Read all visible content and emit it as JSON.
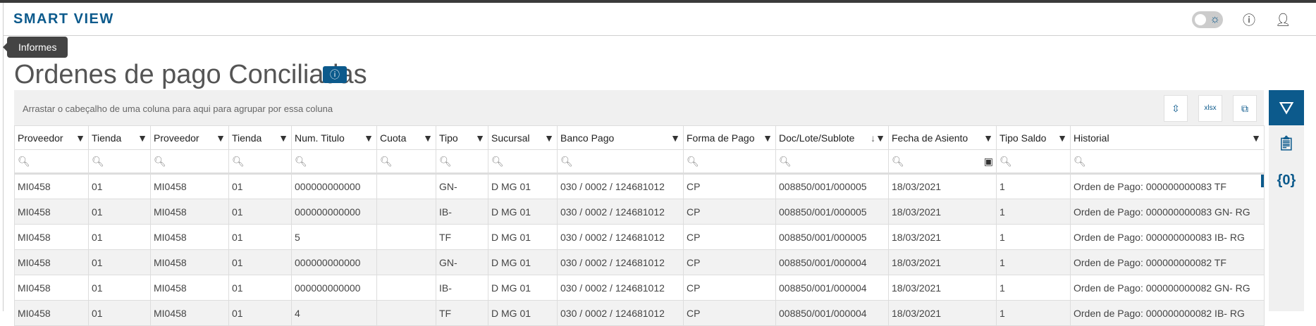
{
  "header": {
    "brand": "SMART VIEW",
    "icons": [
      "theme-toggle",
      "info-icon",
      "user-icon"
    ]
  },
  "tooltip": "Informes",
  "page": {
    "title": "Ordenes de pago Conciliadas",
    "info_icon": "info-icon"
  },
  "grid": {
    "group_hint": "Arrastar o cabeçalho de uma coluna para aqui para agrupar por essa coluna",
    "toolbar": [
      "collapse-rows-icon",
      "export-xlsx-icon",
      "column-chooser-icon"
    ],
    "columns": [
      "Proveedor",
      "Tienda",
      "Proveedor",
      "Tienda",
      "Num. Titulo",
      "Cuota",
      "Tipo",
      "Sucursal",
      "Banco Pago",
      "Forma de Pago",
      "Doc/Lote/Sublote",
      "Fecha de Asiento",
      "Tipo Saldo",
      "Historial"
    ],
    "sort_indicator": "↓",
    "rows": [
      [
        "MI0458",
        "01",
        "MI0458",
        "01",
        "000000000000",
        "",
        "GN-",
        "D MG 01",
        "030 / 0002 / 124681012",
        "CP",
        "008850/001/000005",
        "18/03/2021",
        "1",
        "Orden de Pago: 000000000083 TF"
      ],
      [
        "MI0458",
        "01",
        "MI0458",
        "01",
        "000000000000",
        "",
        "IB-",
        "D MG 01",
        "030 / 0002 / 124681012",
        "CP",
        "008850/001/000005",
        "18/03/2021",
        "1",
        "Orden de Pago: 000000000083 GN- RG"
      ],
      [
        "MI0458",
        "01",
        "MI0458",
        "01",
        "5",
        "",
        "TF",
        "D MG 01",
        "030 / 0002 / 124681012",
        "CP",
        "008850/001/000005",
        "18/03/2021",
        "1",
        "Orden de Pago: 000000000083 IB- RG"
      ],
      [
        "MI0458",
        "01",
        "MI0458",
        "01",
        "000000000000",
        "",
        "GN-",
        "D MG 01",
        "030 / 0002 / 124681012",
        "CP",
        "008850/001/000004",
        "18/03/2021",
        "1",
        "Orden de Pago: 000000000082 TF"
      ],
      [
        "MI0458",
        "01",
        "MI0458",
        "01",
        "000000000000",
        "",
        "IB-",
        "D MG 01",
        "030 / 0002 / 124681012",
        "CP",
        "008850/001/000004",
        "18/03/2021",
        "1",
        "Orden de Pago: 000000000082 GN- RG"
      ],
      [
        "MI0458",
        "01",
        "MI0458",
        "01",
        "4",
        "",
        "TF",
        "D MG 01",
        "030 / 0002 / 124681012",
        "CP",
        "008850/001/000004",
        "18/03/2021",
        "1",
        "Orden de Pago: 000000000082 IB- RG"
      ]
    ]
  },
  "sidebar": {
    "items": [
      "filter-icon",
      "clipboard-icon",
      "variables-icon"
    ],
    "variables_glyph": "{0}"
  },
  "colors": {
    "accent": "#0c5a8c"
  }
}
